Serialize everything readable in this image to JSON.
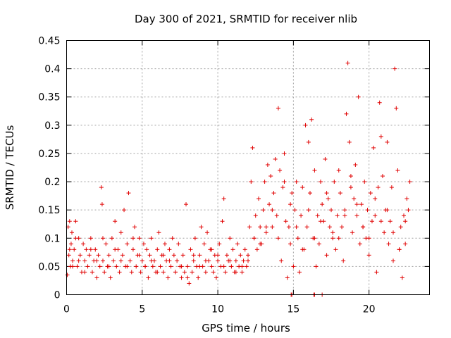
{
  "chart_data": {
    "type": "scatter",
    "title": "Day 300 of 2021, SRMTID for receiver nlib",
    "xlabel": "GPS time / hours",
    "ylabel": "SRMTID / TECUs",
    "xlim": [
      0,
      24
    ],
    "ylim": [
      0,
      0.45
    ],
    "x_ticks": [
      0,
      5,
      10,
      15,
      20
    ],
    "x_tick_labels": [
      "0",
      "5",
      "10",
      "15",
      "20"
    ],
    "y_ticks": [
      0,
      0.05,
      0.1,
      0.15,
      0.2,
      0.25,
      0.3,
      0.35,
      0.4,
      0.45
    ],
    "y_tick_labels": [
      "0",
      "0.05",
      "0.1",
      "0.15",
      "0.2",
      "0.25",
      "0.3",
      "0.35",
      "0.4",
      "0.45"
    ],
    "grid": true,
    "marker": "+",
    "color": "#e00000",
    "series": [
      {
        "name": "SRMTID",
        "x": [
          0.05,
          0.1,
          0.15,
          0.2,
          0.25,
          0.3,
          0.35,
          0.4,
          0.5,
          0.6,
          0.7,
          0.8,
          0.9,
          1.0,
          1.1,
          1.2,
          1.3,
          1.4,
          1.5,
          1.6,
          1.7,
          1.8,
          1.9,
          2.0,
          2.1,
          2.2,
          2.3,
          2.35,
          2.4,
          2.5,
          2.6,
          2.7,
          2.8,
          2.9,
          3.0,
          3.1,
          3.2,
          3.3,
          3.4,
          3.5,
          3.6,
          3.7,
          3.8,
          3.9,
          4.0,
          4.1,
          4.2,
          4.3,
          4.4,
          4.5,
          4.6,
          4.7,
          4.8,
          4.9,
          5.0,
          5.1,
          5.2,
          5.3,
          5.4,
          5.5,
          5.6,
          5.7,
          5.8,
          5.9,
          6.0,
          6.1,
          6.2,
          6.3,
          6.4,
          6.5,
          6.6,
          6.7,
          6.8,
          6.9,
          7.0,
          7.1,
          7.2,
          7.3,
          7.4,
          7.5,
          7.6,
          7.7,
          7.8,
          7.9,
          8.0,
          8.1,
          8.2,
          8.3,
          8.4,
          8.5,
          8.6,
          8.7,
          8.8,
          8.9,
          9.0,
          9.1,
          9.2,
          9.3,
          9.4,
          9.5,
          9.6,
          9.7,
          9.8,
          9.9,
          10.0,
          10.1,
          10.2,
          10.3,
          10.4,
          10.5,
          10.6,
          10.7,
          10.8,
          10.9,
          11.0,
          11.1,
          11.2,
          11.3,
          11.4,
          11.5,
          11.6,
          11.7,
          11.8,
          11.9,
          12.0,
          12.1,
          12.2,
          12.3,
          12.4,
          12.5,
          12.6,
          12.7,
          12.8,
          12.9,
          13.0,
          13.1,
          13.2,
          13.3,
          13.4,
          13.5,
          13.6,
          13.7,
          13.8,
          13.9,
          14.0,
          14.1,
          14.2,
          14.3,
          14.4,
          14.5,
          14.6,
          14.7,
          14.8,
          14.9,
          15.0,
          15.1,
          15.2,
          15.3,
          15.4,
          15.5,
          15.6,
          15.7,
          15.8,
          15.9,
          16.0,
          16.1,
          16.2,
          16.3,
          16.4,
          16.5,
          16.6,
          16.7,
          16.8,
          16.9,
          17.0,
          17.1,
          17.2,
          17.3,
          17.4,
          17.5,
          17.6,
          17.7,
          17.8,
          17.9,
          18.0,
          18.1,
          18.2,
          18.3,
          18.4,
          18.5,
          18.6,
          18.7,
          18.8,
          18.9,
          19.0,
          19.1,
          19.2,
          19.3,
          19.4,
          19.5,
          19.6,
          19.7,
          19.8,
          19.9,
          20.0,
          20.1,
          20.2,
          20.3,
          20.4,
          20.5,
          20.6,
          20.7,
          20.8,
          20.9,
          21.0,
          21.1,
          21.2,
          21.3,
          21.4,
          21.5,
          21.6,
          21.7,
          21.8,
          21.9,
          22.0,
          22.1,
          22.2,
          22.3,
          22.4,
          22.5,
          22.6,
          22.7
        ],
        "y": [
          0.035,
          0.12,
          0.07,
          0.13,
          0.05,
          0.09,
          0.11,
          0.06,
          0.08,
          0.13,
          0.05,
          0.1,
          0.07,
          0.04,
          0.09,
          0.06,
          0.08,
          0.05,
          0.07,
          0.1,
          0.04,
          0.06,
          0.08,
          0.03,
          0.07,
          0.05,
          0.19,
          0.16,
          0.06,
          0.04,
          0.09,
          0.05,
          0.07,
          0.03,
          0.1,
          0.06,
          0.13,
          0.05,
          0.08,
          0.04,
          0.11,
          0.07,
          0.15,
          0.05,
          0.09,
          0.18,
          0.06,
          0.04,
          0.08,
          0.12,
          0.05,
          0.07,
          0.1,
          0.04,
          0.06,
          0.09,
          0.05,
          0.08,
          0.03,
          0.07,
          0.1,
          0.05,
          0.06,
          0.04,
          0.08,
          0.11,
          0.05,
          0.07,
          0.04,
          0.09,
          0.06,
          0.03,
          0.08,
          0.05,
          0.1,
          0.07,
          0.04,
          0.06,
          0.09,
          0.05,
          0.03,
          0.07,
          0.04,
          0.16,
          0.05,
          0.02,
          0.08,
          0.04,
          0.06,
          0.1,
          0.05,
          0.03,
          0.07,
          0.12,
          0.05,
          0.09,
          0.04,
          0.11,
          0.06,
          0.08,
          0.05,
          0.04,
          0.07,
          0.03,
          0.06,
          0.09,
          0.05,
          0.13,
          0.17,
          0.04,
          0.07,
          0.06,
          0.1,
          0.05,
          0.08,
          0.04,
          0.06,
          0.09,
          0.05,
          0.07,
          0.04,
          0.06,
          0.08,
          0.05,
          0.07,
          0.12,
          0.2,
          0.26,
          0.1,
          0.14,
          0.08,
          0.17,
          0.12,
          0.09,
          0.15,
          0.2,
          0.11,
          0.23,
          0.16,
          0.21,
          0.12,
          0.18,
          0.24,
          0.14,
          0.33,
          0.22,
          0.06,
          0.19,
          0.25,
          0.13,
          0.03,
          0.12,
          0.09,
          0.18,
          0.05,
          0.15,
          0.2,
          0.1,
          0.04,
          0.14,
          0.19,
          0.08,
          0.3,
          0.12,
          0.27,
          0.18,
          0.31,
          0.1,
          0.22,
          0.05,
          0.14,
          0.09,
          0.2,
          0.16,
          0.13,
          0.24,
          0.07,
          0.17,
          0.12,
          0.15,
          0.11,
          0.2,
          0.08,
          0.14,
          0.1,
          0.18,
          0.12,
          0.06,
          0.15,
          0.32,
          0.41,
          0.27,
          0.21,
          0.11,
          0.17,
          0.23,
          0.14,
          0.35,
          0.09,
          0.16,
          0.12,
          0.2,
          0.1,
          0.15,
          0.07,
          0.18,
          0.13,
          0.26,
          0.14,
          0.04,
          0.19,
          0.34,
          0.28,
          0.21,
          0.11,
          0.15,
          0.27,
          0.09,
          0.13,
          0.19,
          0.06,
          0.4,
          0.33,
          0.22,
          0.08,
          0.12,
          0.03,
          0.14,
          0.09,
          0.17,
          0.15,
          0.2
        ],
        "extra": {
          "x": [
            0.2,
            0.4,
            0.6,
            0.8,
            1.2,
            1.6,
            2.0,
            2.4,
            2.8,
            3.2,
            3.6,
            4.0,
            4.4,
            4.8,
            5.2,
            5.6,
            6.0,
            6.4,
            6.8,
            7.2,
            7.6,
            8.0,
            8.4,
            8.8,
            9.2,
            9.6,
            10.0,
            10.4,
            10.8,
            11.2,
            11.6,
            12.0,
            12.4,
            12.8,
            13.2,
            13.6,
            14.0,
            14.4,
            14.8,
            15.2,
            15.6,
            16.0,
            16.4,
            16.8,
            17.2,
            17.6,
            18.0,
            18.4,
            18.8,
            19.2,
            19.6,
            20.0,
            20.4,
            20.8,
            21.2,
            21.6,
            22.0,
            22.4,
            14.9,
            16.4,
            16.9,
            14.85,
            16.35
          ],
          "y": [
            0.08,
            0.05,
            0.1,
            0.06,
            0.04,
            0.08,
            0.06,
            0.1,
            0.05,
            0.08,
            0.06,
            0.05,
            0.1,
            0.07,
            0.05,
            0.06,
            0.04,
            0.07,
            0.06,
            0.04,
            0.05,
            0.03,
            0.07,
            0.05,
            0.06,
            0.08,
            0.07,
            0.05,
            0.06,
            0.04,
            0.05,
            0.06,
            0.1,
            0.09,
            0.12,
            0.15,
            0.1,
            0.2,
            0.16,
            0.12,
            0.08,
            0.15,
            0.1,
            0.13,
            0.18,
            0.1,
            0.22,
            0.14,
            0.19,
            0.16,
            0.12,
            0.1,
            0.17,
            0.13,
            0.15,
            0.11,
            0.08,
            0.13,
            0.0,
            0.0,
            0.0,
            0.0,
            0.0
          ]
        }
      }
    ]
  }
}
